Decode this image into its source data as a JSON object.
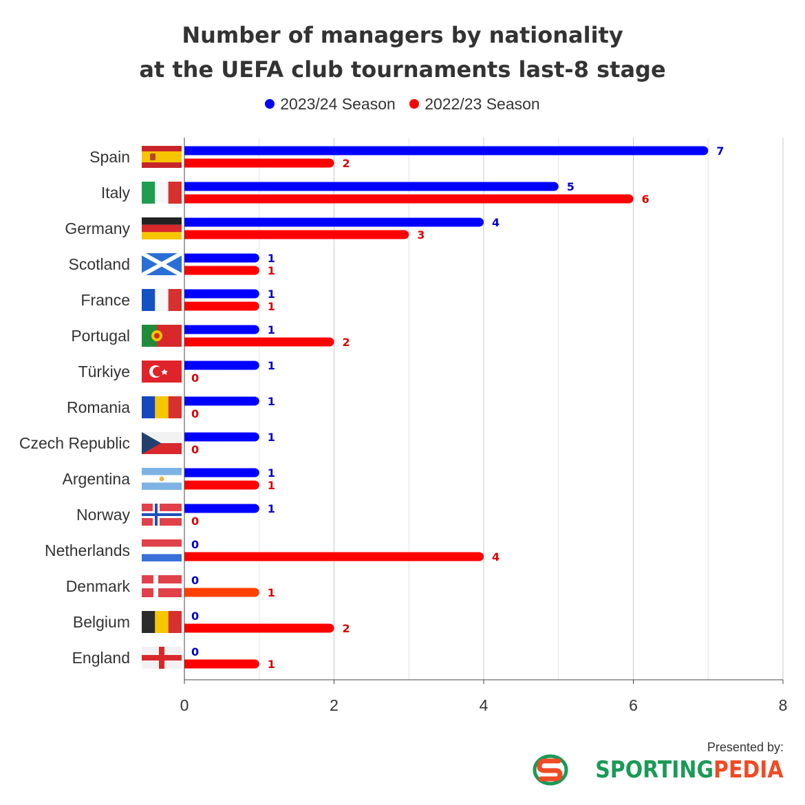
{
  "title_line1": "Number of managers by nationality",
  "title_line2": "at the UEFA club tournaments last-8 stage",
  "legend": [
    {
      "label": "2023/24 Season",
      "color": "#0000ff"
    },
    {
      "label": "2022/23 Season",
      "color": "#ff0000"
    }
  ],
  "credit": "Presented by:",
  "brand": {
    "part1": "SPORTING",
    "part2": "PEDIA"
  },
  "chart_data": {
    "type": "bar",
    "orientation": "horizontal",
    "title": "Number of managers by nationality at the UEFA club tournaments last-8 stage",
    "categories": [
      "Spain",
      "Italy",
      "Germany",
      "Scotland",
      "France",
      "Portugal",
      "Türkiye",
      "Romania",
      "Czech Republic",
      "Argentina",
      "Norway",
      "Netherlands",
      "Denmark",
      "Belgium",
      "England"
    ],
    "series": [
      {
        "name": "2023/24 Season",
        "color": "#0000ff",
        "label_color": "#0000cc",
        "values": [
          7,
          5,
          4,
          1,
          1,
          1,
          1,
          1,
          1,
          1,
          1,
          0,
          0,
          0,
          0
        ]
      },
      {
        "name": "2022/23 Season",
        "color": "#ff0000",
        "label_color": "#dd0000",
        "values": [
          2,
          6,
          3,
          1,
          1,
          2,
          0,
          0,
          0,
          1,
          0,
          4,
          1,
          2,
          1
        ]
      }
    ],
    "xlim": [
      0,
      8
    ],
    "xticks": [
      "0",
      "2",
      "4",
      "6",
      "8"
    ],
    "grid": true,
    "legend_position": "top-center",
    "flags": [
      "spain-flag",
      "italy-flag",
      "germany-flag",
      "scotland-flag",
      "france-flag",
      "portugal-flag",
      "turkiye-flag",
      "romania-flag",
      "czech-republic-flag",
      "argentina-flag",
      "norway-flag",
      "netherlands-flag",
      "denmark-flag",
      "belgium-flag",
      "england-flag"
    ]
  }
}
